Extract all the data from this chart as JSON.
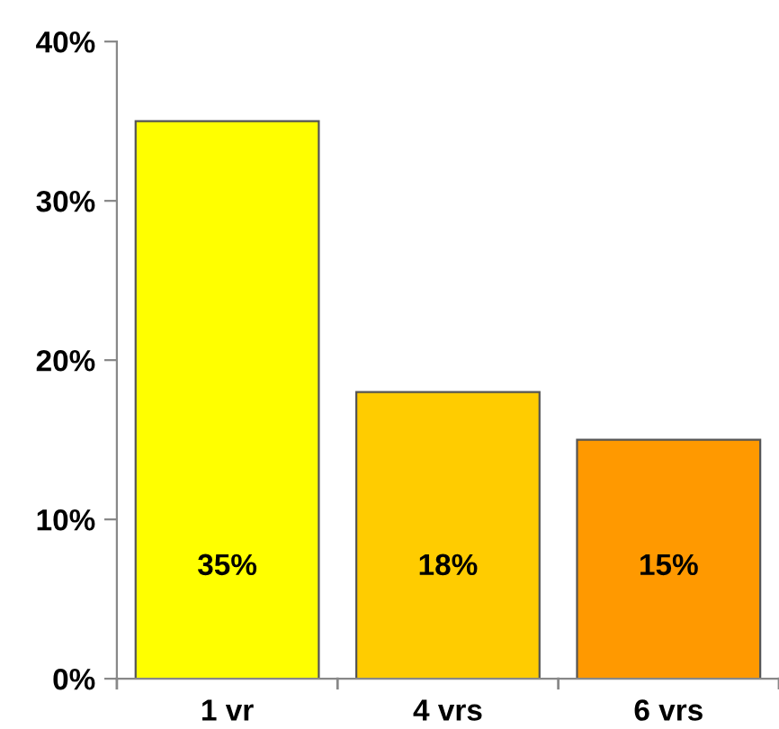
{
  "chart_data": {
    "type": "bar",
    "categories": [
      "1 vr",
      "4 vrs",
      "6 vrs"
    ],
    "values": [
      35,
      18,
      15
    ],
    "colors": [
      "#ffff00",
      "#ffcc00",
      "#ff9900"
    ],
    "value_labels": [
      "35%",
      "18%",
      "15%"
    ],
    "ylim": [
      0,
      40
    ],
    "yticks": [
      {
        "value": 0,
        "label": "0%"
      },
      {
        "value": 10,
        "label": "10%"
      },
      {
        "value": 20,
        "label": "20%"
      },
      {
        "value": 30,
        "label": "30%"
      },
      {
        "value": 40,
        "label": "40%"
      }
    ],
    "grid": false,
    "legend": false
  }
}
